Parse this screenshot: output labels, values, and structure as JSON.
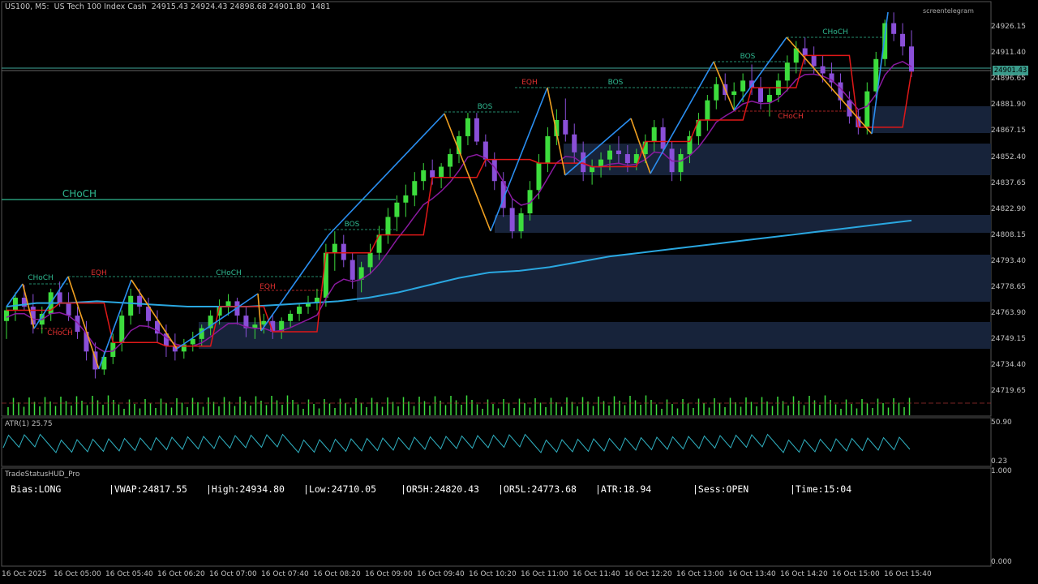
{
  "header": {
    "symbol": "US100, M5:  US Tech 100 Index Cash",
    "ohlc": "24915.43 24924.43 24898.68 24901.80",
    "volume": "1481"
  },
  "brand_text": "screentelegram",
  "current_price_label": "24901.43",
  "price_axis": [
    "24926.15",
    "24911.40",
    "24896.65",
    "24881.90",
    "24867.15",
    "24852.40",
    "24837.65",
    "24822.90",
    "24808.15",
    "24793.40",
    "24778.65",
    "24763.90",
    "24749.15",
    "24734.40",
    "24719.65"
  ],
  "atr_panel": {
    "label": "ATR(1) 25.75",
    "axis_top": "50.90",
    "axis_bottom": "0.23"
  },
  "hud_panel": {
    "label": "TradeStatusHUD_Pro",
    "axis_top": "1.000",
    "axis_bottom": "0.000",
    "items": [
      "Bias:LONG",
      "|VWAP:24817.55",
      "|High:24934.80",
      "|Low:24710.05",
      "|OR5H:24820.43",
      "|OR5L:24773.68",
      "|ATR:18.94",
      "|Sess:OPEN",
      "|Time:15:04"
    ]
  },
  "time_axis": [
    "16 Oct 2025",
    "16 Oct 05:00",
    "16 Oct 05:40",
    "16 Oct 06:20",
    "16 Oct 07:00",
    "16 Oct 07:40",
    "16 Oct 08:20",
    "16 Oct 09:00",
    "16 Oct 09:40",
    "16 Oct 10:20",
    "16 Oct 11:00",
    "16 Oct 11:40",
    "16 Oct 12:20",
    "16 Oct 13:00",
    "16 Oct 13:40",
    "16 Oct 14:20",
    "16 Oct 15:00",
    "16 Oct 15:40"
  ],
  "colors": {
    "bull": "#3ddc3d",
    "bear": "#8a4fd8",
    "ma_blue": "#2aa7e0",
    "red_line": "#e01818",
    "purple_line": "#8a1aa0",
    "zigzag_up": "#2a8ef0",
    "zigzag_down": "#f0a020",
    "zone": "#17233a",
    "structure_green": "#2fb890",
    "structure_red": "#e03030"
  },
  "chart_data": {
    "type": "candlestick",
    "symbol": "US100",
    "timeframe": "M5",
    "y_range": [
      24709,
      24940
    ],
    "candles": [
      [
        24762,
        24770,
        24752,
        24768
      ],
      [
        24768,
        24778,
        24762,
        24775
      ],
      [
        24775,
        24782,
        24768,
        24770
      ],
      [
        24770,
        24777,
        24755,
        24760
      ],
      [
        24760,
        24770,
        24755,
        24766
      ],
      [
        24766,
        24780,
        24762,
        24778
      ],
      [
        24778,
        24784,
        24770,
        24772
      ],
      [
        24772,
        24778,
        24762,
        24765
      ],
      [
        24765,
        24770,
        24752,
        24756
      ],
      [
        24756,
        24762,
        24740,
        24745
      ],
      [
        24745,
        24750,
        24730,
        24735
      ],
      [
        24735,
        24745,
        24732,
        24742
      ],
      [
        24742,
        24755,
        24738,
        24750
      ],
      [
        24750,
        24768,
        24745,
        24765
      ],
      [
        24765,
        24780,
        24760,
        24776
      ],
      [
        24776,
        24780,
        24766,
        24770
      ],
      [
        24770,
        24775,
        24758,
        24762
      ],
      [
        24762,
        24768,
        24750,
        24755
      ],
      [
        24755,
        24760,
        24742,
        24748
      ],
      [
        24748,
        24755,
        24740,
        24745
      ],
      [
        24745,
        24752,
        24741,
        24749
      ],
      [
        24749,
        24756,
        24745,
        24752
      ],
      [
        24752,
        24760,
        24748,
        24758
      ],
      [
        24758,
        24768,
        24754,
        24765
      ],
      [
        24765,
        24774,
        24760,
        24770
      ],
      [
        24770,
        24777,
        24765,
        24773
      ],
      [
        24773,
        24775,
        24760,
        24765
      ],
      [
        24765,
        24770,
        24753,
        24758
      ],
      [
        24758,
        24764,
        24752,
        24760
      ],
      [
        24760,
        24766,
        24755,
        24762
      ],
      [
        24762,
        24766,
        24752,
        24756
      ],
      [
        24756,
        24764,
        24752,
        24762
      ],
      [
        24762,
        24768,
        24758,
        24766
      ],
      [
        24766,
        24772,
        24762,
        24770
      ],
      [
        24770,
        24776,
        24766,
        24772
      ],
      [
        24772,
        24780,
        24768,
        24775
      ],
      [
        24775,
        24805,
        24770,
        24800
      ],
      [
        24800,
        24812,
        24790,
        24805
      ],
      [
        24805,
        24810,
        24792,
        24796
      ],
      [
        24796,
        24800,
        24780,
        24785
      ],
      [
        24785,
        24795,
        24778,
        24792
      ],
      [
        24792,
        24805,
        24788,
        24800
      ],
      [
        24800,
        24815,
        24796,
        24810
      ],
      [
        24810,
        24825,
        24805,
        24820
      ],
      [
        24820,
        24832,
        24812,
        24828
      ],
      [
        24828,
        24838,
        24820,
        24832
      ],
      [
        24832,
        24845,
        24826,
        24840
      ],
      [
        24840,
        24850,
        24835,
        24846
      ],
      [
        24846,
        24852,
        24838,
        24842
      ],
      [
        24842,
        24850,
        24836,
        24848
      ],
      [
        24848,
        24858,
        24842,
        24855
      ],
      [
        24855,
        24868,
        24850,
        24865
      ],
      [
        24865,
        24878,
        24860,
        24875
      ],
      [
        24875,
        24878,
        24860,
        24862
      ],
      [
        24862,
        24866,
        24848,
        24852
      ],
      [
        24852,
        24856,
        24835,
        24840
      ],
      [
        24840,
        24845,
        24820,
        24825
      ],
      [
        24825,
        24830,
        24808,
        24812
      ],
      [
        24812,
        24825,
        24808,
        24822
      ],
      [
        24822,
        24840,
        24818,
        24835
      ],
      [
        24835,
        24855,
        24830,
        24850
      ],
      [
        24850,
        24870,
        24845,
        24865
      ],
      [
        24865,
        24880,
        24860,
        24874
      ],
      [
        24874,
        24886,
        24862,
        24866
      ],
      [
        24866,
        24872,
        24850,
        24856
      ],
      [
        24856,
        24862,
        24840,
        24845
      ],
      [
        24845,
        24852,
        24838,
        24848
      ],
      [
        24848,
        24856,
        24842,
        24852
      ],
      [
        24852,
        24860,
        24846,
        24857
      ],
      [
        24857,
        24865,
        24850,
        24855
      ],
      [
        24855,
        24860,
        24845,
        24850
      ],
      [
        24850,
        24858,
        24846,
        24855
      ],
      [
        24855,
        24866,
        24850,
        24862
      ],
      [
        24862,
        24874,
        24856,
        24870
      ],
      [
        24870,
        24875,
        24855,
        24858
      ],
      [
        24858,
        24862,
        24840,
        24845
      ],
      [
        24845,
        24858,
        24840,
        24855
      ],
      [
        24855,
        24868,
        24850,
        24865
      ],
      [
        24865,
        24878,
        24860,
        24874
      ],
      [
        24874,
        24888,
        24868,
        24885
      ],
      [
        24885,
        24898,
        24880,
        24894
      ],
      [
        24894,
        24900,
        24885,
        24888
      ],
      [
        24888,
        24895,
        24880,
        24890
      ],
      [
        24890,
        24900,
        24884,
        24896
      ],
      [
        24896,
        24905,
        24888,
        24892
      ],
      [
        24892,
        24898,
        24880,
        24884
      ],
      [
        24884,
        24892,
        24876,
        24888
      ],
      [
        24888,
        24900,
        24884,
        24896
      ],
      [
        24896,
        24910,
        24890,
        24906
      ],
      [
        24906,
        24918,
        24900,
        24914
      ],
      [
        24914,
        24920,
        24905,
        24910
      ],
      [
        24910,
        24915,
        24900,
        24904
      ],
      [
        24904,
        24910,
        24895,
        24900
      ],
      [
        24900,
        24906,
        24890,
        24895
      ],
      [
        24895,
        24900,
        24880,
        24885
      ],
      [
        24885,
        24890,
        24872,
        24876
      ],
      [
        24876,
        24880,
        24866,
        24870
      ],
      [
        24870,
        24895,
        24866,
        24890
      ],
      [
        24890,
        24912,
        24886,
        24908
      ],
      [
        24908,
        24930,
        24904,
        24928
      ],
      [
        24928,
        24934,
        24918,
        24922
      ],
      [
        24922,
        24928,
        24910,
        24915
      ],
      [
        24915,
        24924,
        24898,
        24901
      ]
    ],
    "moving_average": [
      24770,
      24772,
      24772,
      24773,
      24772,
      24771,
      24770,
      24770,
      24770,
      24771,
      24772,
      24773,
      24775,
      24778,
      24782,
      24786,
      24789,
      24790,
      24792,
      24795,
      24798,
      24800,
      24802,
      24804,
      24806,
      24808,
      24810,
      24812,
      24814,
      24816,
      24818
    ],
    "annotations": [
      {
        "text": "CHoCH",
        "kind": "structure_up"
      },
      {
        "text": "EQH",
        "kind": "equal_high"
      },
      {
        "text": "CHoCH",
        "kind": "structure_down"
      },
      {
        "text": "CHoCH",
        "kind": "structure_up"
      },
      {
        "text": "EQH",
        "kind": "equal_high"
      },
      {
        "text": "CHoCH",
        "kind": "structure_up"
      },
      {
        "text": "BOS",
        "kind": "break"
      },
      {
        "text": "BOS",
        "kind": "break"
      },
      {
        "text": "EQH",
        "kind": "equal_high"
      },
      {
        "text": "BOS",
        "kind": "break"
      },
      {
        "text": "BOS",
        "kind": "break"
      },
      {
        "text": "CHoCH",
        "kind": "structure_up"
      },
      {
        "text": "CHoCH",
        "kind": "structure_down"
      }
    ]
  }
}
